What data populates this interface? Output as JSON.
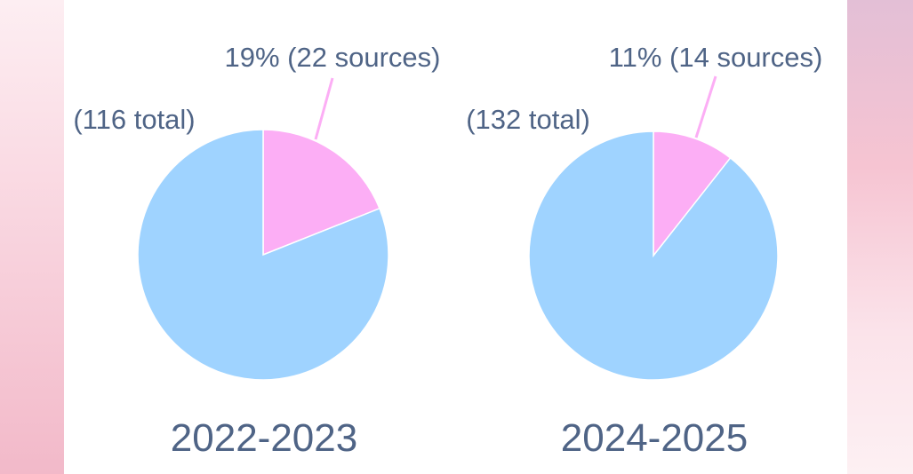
{
  "chart_data": [
    {
      "type": "pie",
      "title": "2022-2023",
      "total_label": "(116 total)",
      "slices": [
        {
          "label": "19% (22 sources)",
          "value": 22,
          "color": "#fcaef5"
        },
        {
          "label": "",
          "value": 94,
          "color": "#9fd3ff"
        }
      ]
    },
    {
      "type": "pie",
      "title": "2024-2025",
      "total_label": "(132 total)",
      "slices": [
        {
          "label": "11% (14 sources)",
          "value": 14,
          "color": "#fcaef5"
        },
        {
          "label": "",
          "value": 118,
          "color": "#9fd3ff"
        }
      ]
    }
  ],
  "colors": {
    "text": "#4f6486",
    "leader": "#fcaef5"
  }
}
